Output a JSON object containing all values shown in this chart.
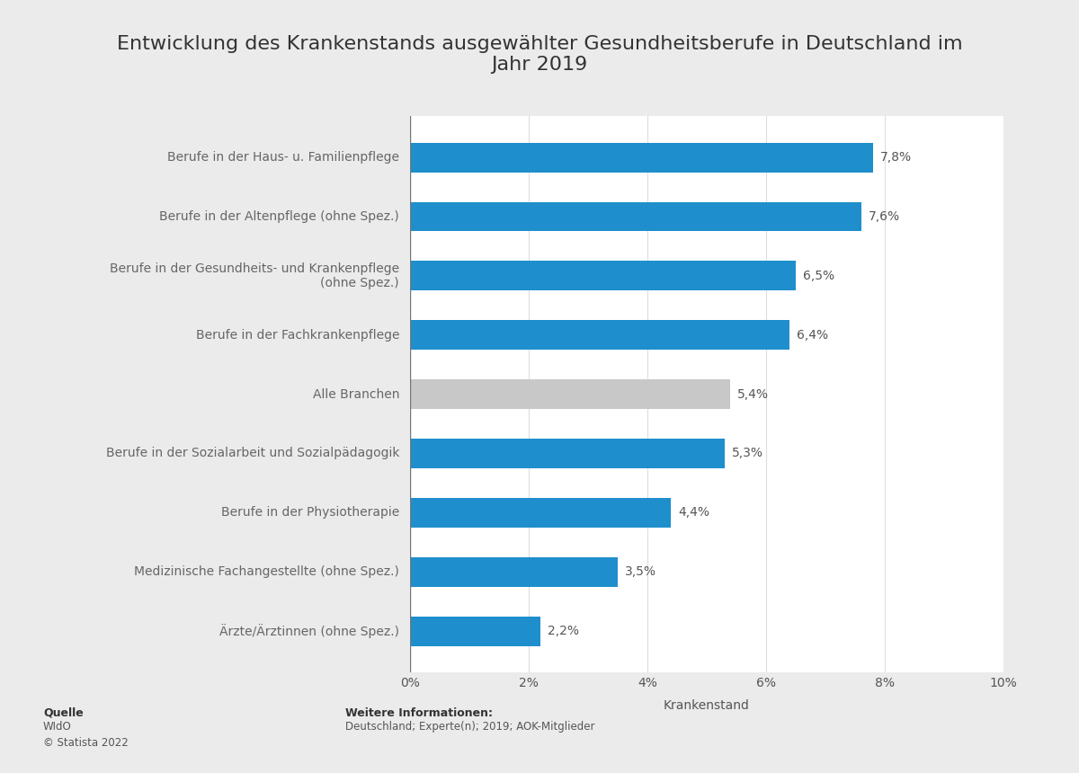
{
  "title": "Entwicklung des Krankenstands ausgewählter Gesundheitsberufe in Deutschland im\nJahr 2019",
  "categories": [
    "Berufe in der Haus- u. Familienpflege",
    "Berufe in der Altenpflege (ohne Spez.)",
    "Berufe in der Gesundheits- und Krankenpflege\n(ohne Spez.)",
    "Berufe in der Fachkrankenpflege",
    "Alle Branchen",
    "Berufe in der Sozialarbeit und Sozialpädagogik",
    "Berufe in der Physiotherapie",
    "Medizinische Fachangestellte (ohne Spez.)",
    "Ärzte/Ärztinnen (ohne Spez.)"
  ],
  "values": [
    7.8,
    7.6,
    6.5,
    6.4,
    5.4,
    5.3,
    4.4,
    3.5,
    2.2
  ],
  "bar_colors": [
    "#1e8fcc",
    "#1e8fcc",
    "#1e8fcc",
    "#1e8fcc",
    "#c8c8c8",
    "#1e8fcc",
    "#1e8fcc",
    "#1e8fcc",
    "#1e8fcc"
  ],
  "xlabel": "Krankenstand",
  "xlim": [
    0,
    10
  ],
  "xtick_labels": [
    "0%",
    "2%",
    "4%",
    "6%",
    "8%",
    "10%"
  ],
  "xtick_values": [
    0,
    2,
    4,
    6,
    8,
    10
  ],
  "background_color": "#ebebeb",
  "plot_bg_color": "#ffffff",
  "title_fontsize": 16,
  "label_fontsize": 10,
  "value_fontsize": 10,
  "xlabel_fontsize": 10,
  "source_label": "Quelle",
  "source_body": "WIdO\n© Statista 2022",
  "info_label": "Weitere Informationen:",
  "info_body": "Deutschland; Experte(n); 2019; AOK-Mitglieder",
  "bar_height": 0.5
}
